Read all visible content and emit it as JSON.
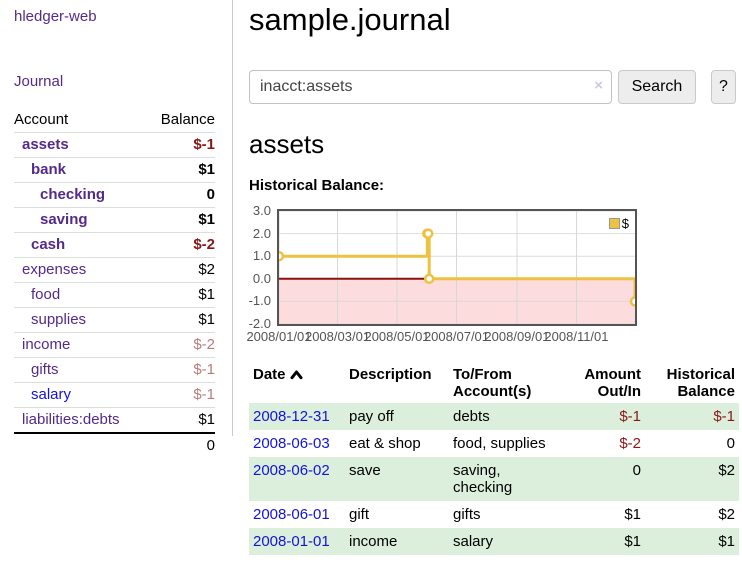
{
  "sidebar": {
    "brand": "hledger-web",
    "nav_journal": "Journal",
    "accounts_table": {
      "headers": [
        "Account",
        "Balance"
      ],
      "rows": [
        {
          "name": "assets",
          "indent": 1,
          "bold": true,
          "balance": "$-1",
          "balance_style": "neg-strong",
          "link_color": "purple"
        },
        {
          "name": "bank",
          "indent": 2,
          "bold": true,
          "balance": "$1",
          "balance_style": "pos",
          "link_color": "purple"
        },
        {
          "name": "checking",
          "indent": 3,
          "bold": true,
          "balance": "0",
          "balance_style": "pos",
          "link_color": "purple"
        },
        {
          "name": "saving",
          "indent": 3,
          "bold": true,
          "balance": "$1",
          "balance_style": "pos",
          "link_color": "purple"
        },
        {
          "name": "cash",
          "indent": 2,
          "bold": true,
          "balance": "$-2",
          "balance_style": "neg-strong",
          "link_color": "purple"
        },
        {
          "name": "expenses",
          "indent": 1,
          "bold": false,
          "balance": "$2",
          "balance_style": "pos",
          "link_color": "purple"
        },
        {
          "name": "food",
          "indent": 2,
          "bold": false,
          "balance": "$1",
          "balance_style": "pos",
          "link_color": "purple"
        },
        {
          "name": "supplies",
          "indent": 2,
          "bold": false,
          "balance": "$1",
          "balance_style": "pos",
          "link_color": "purple"
        },
        {
          "name": "income",
          "indent": 1,
          "bold": false,
          "balance": "$-2",
          "balance_style": "neg-soft",
          "link_color": "purple"
        },
        {
          "name": "gifts",
          "indent": 2,
          "bold": false,
          "balance": "$-1",
          "balance_style": "neg-soft",
          "link_color": "purple"
        },
        {
          "name": "salary",
          "indent": 2,
          "bold": false,
          "balance": "$-1",
          "balance_style": "neg-soft",
          "link_color": "blue"
        },
        {
          "name": "liabilities:debts",
          "indent": 1,
          "bold": false,
          "balance": "$1",
          "balance_style": "pos",
          "link_color": "purple"
        }
      ],
      "total": "0"
    }
  },
  "header": {
    "title": "sample.journal"
  },
  "search": {
    "value": "inacct:assets",
    "clear_icon": "×",
    "button_label": "Search",
    "help_label": "?"
  },
  "account_page": {
    "heading": "assets",
    "chart_label": "Historical Balance:"
  },
  "chart_data": {
    "type": "line",
    "title": "Historical Balance:",
    "series": [
      {
        "name": "$",
        "color": "#edc240",
        "step": true,
        "points": [
          [
            "2008-01-01",
            1.0
          ],
          [
            "2008-06-01",
            2.0
          ],
          [
            "2008-06-02",
            2.0
          ],
          [
            "2008-06-03",
            0.0
          ],
          [
            "2008-12-31",
            -1.0
          ]
        ]
      }
    ],
    "x_range": [
      "2008-01-01",
      "2008-12-31"
    ],
    "ylim": [
      -2.0,
      3.0
    ],
    "y_ticks": [
      {
        "v": 3.0,
        "label": "3.0"
      },
      {
        "v": 2.0,
        "label": "2.0"
      },
      {
        "v": 1.0,
        "label": "1.0"
      },
      {
        "v": 0.0,
        "label": "0.0"
      },
      {
        "v": -1.0,
        "label": "-1.0"
      },
      {
        "v": -2.0,
        "label": "-2.0"
      }
    ],
    "x_ticks": [
      {
        "d": "2008-01-01",
        "label": "2008/01/01"
      },
      {
        "d": "2008-03-01",
        "label": "2008/03/01"
      },
      {
        "d": "2008-05-01",
        "label": "2008/05/01"
      },
      {
        "d": "2008-07-01",
        "label": "2008/07/01"
      },
      {
        "d": "2008-09-01",
        "label": "2008/09/01"
      },
      {
        "d": "2008-11-01",
        "label": "2008/11/01"
      }
    ],
    "legend": {
      "label": "$",
      "position": "top-right"
    },
    "grid": true,
    "negative_region": true
  },
  "register_table": {
    "headers": {
      "date": "Date",
      "description": "Description",
      "accounts": "To/From Account(s)",
      "amount": "Amount Out/In",
      "balance": "Historical Balance"
    },
    "rows": [
      {
        "date": "2008-12-31",
        "description": "pay off",
        "accounts": "debts",
        "amount": "$-1",
        "amount_neg": true,
        "balance": "$-1",
        "balance_neg": true,
        "green": true
      },
      {
        "date": "2008-06-03",
        "description": "eat & shop",
        "accounts": "food, supplies",
        "amount": "$-2",
        "amount_neg": true,
        "balance": "0",
        "balance_neg": false,
        "green": false
      },
      {
        "date": "2008-06-02",
        "description": "save",
        "accounts": "saving, checking",
        "amount": "0",
        "amount_neg": false,
        "balance": "$2",
        "balance_neg": false,
        "green": true
      },
      {
        "date": "2008-06-01",
        "description": "gift",
        "accounts": "gifts",
        "amount": "$1",
        "amount_neg": false,
        "balance": "$2",
        "balance_neg": false,
        "green": false
      },
      {
        "date": "2008-01-01",
        "description": "income",
        "accounts": "salary",
        "amount": "$1",
        "amount_neg": false,
        "balance": "$1",
        "balance_neg": false,
        "green": true
      }
    ]
  },
  "colors": {
    "link_purple": "#552a8b",
    "link_blue": "#1414d6",
    "negative_strong": "#8c1717",
    "negative_soft": "#b97c7c",
    "row_green": "#dcefdc",
    "series_gold": "#edc240",
    "zero_line_red": "#8b1010",
    "negative_fill_pink": "#fcdcdc",
    "grid_gray": "#d7d7d7",
    "chart_border_gray": "#545454"
  }
}
